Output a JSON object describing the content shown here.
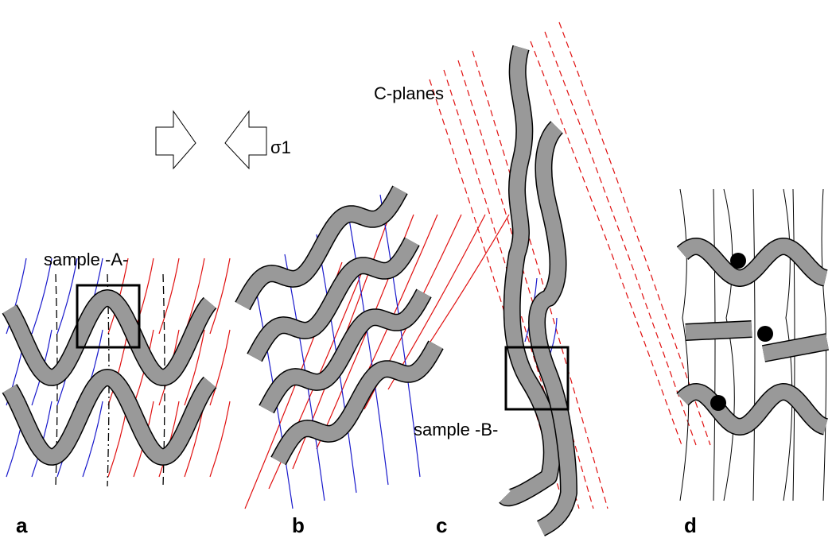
{
  "labels": {
    "stress": "σ1",
    "c_planes": "C-planes",
    "sample_a": "sample -A-",
    "sample_b": "sample -B-"
  },
  "panels": [
    "a",
    "b",
    "c",
    "d"
  ]
}
